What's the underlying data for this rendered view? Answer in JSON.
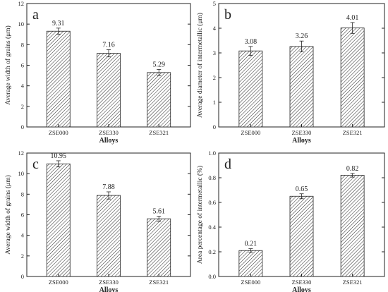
{
  "chart_data": [
    {
      "type": "bar",
      "panel": "a",
      "categories": [
        "ZSE000",
        "ZSE330",
        "ZSE321"
      ],
      "values": [
        9.31,
        7.16,
        5.29
      ],
      "errors": [
        0.3,
        0.35,
        0.3
      ],
      "value_labels": [
        "9.31",
        "7.16",
        "5.29"
      ],
      "xlabel": "Alloys",
      "ylabel": "Average width of grains (μm)",
      "ylim": [
        0,
        12
      ],
      "yticks": [
        0,
        2,
        4,
        6,
        8,
        10,
        12
      ],
      "grid": false
    },
    {
      "type": "bar",
      "panel": "b",
      "categories": [
        "ZSE000",
        "ZSE330",
        "ZSE321"
      ],
      "values": [
        3.08,
        3.26,
        4.01
      ],
      "errors": [
        0.18,
        0.22,
        0.22
      ],
      "value_labels": [
        "3.08",
        "3.26",
        "4.01"
      ],
      "xlabel": "Alloys",
      "ylabel": "Average diameter of intermetallic (μm)",
      "ylim": [
        0,
        5
      ],
      "yticks": [
        0,
        1,
        2,
        3,
        4,
        5
      ],
      "grid": false
    },
    {
      "type": "bar",
      "panel": "c",
      "categories": [
        "ZSE000",
        "ZSE330",
        "ZSE321"
      ],
      "values": [
        10.95,
        7.88,
        5.61
      ],
      "errors": [
        0.3,
        0.35,
        0.25
      ],
      "value_labels": [
        "10.95",
        "7.88",
        "5.61"
      ],
      "xlabel": "Alloys",
      "ylabel": "Average width of grains (μm)",
      "ylim": [
        0,
        12
      ],
      "yticks": [
        0,
        2,
        4,
        6,
        8,
        10,
        12
      ],
      "grid": false
    },
    {
      "type": "bar",
      "panel": "d",
      "categories": [
        "ZSE000",
        "ZSE330",
        "ZSE321"
      ],
      "values": [
        0.21,
        0.65,
        0.82
      ],
      "errors": [
        0.015,
        0.02,
        0.015
      ],
      "value_labels": [
        "0.21",
        "0.65",
        "0.82"
      ],
      "xlabel": "Alloys",
      "ylabel": "Area percentage of intermetallic (%)",
      "ylim": [
        0,
        1.0
      ],
      "yticks": [
        0.0,
        0.2,
        0.4,
        0.6,
        0.8,
        1.0
      ],
      "ytick_labels": [
        "0.0",
        "0.2",
        "0.4",
        "0.6",
        "0.8",
        "1.0"
      ],
      "grid": false
    }
  ],
  "colors": {
    "bar_fill_hatch": "#222222",
    "axis": "#222222",
    "background": "#ffffff"
  }
}
